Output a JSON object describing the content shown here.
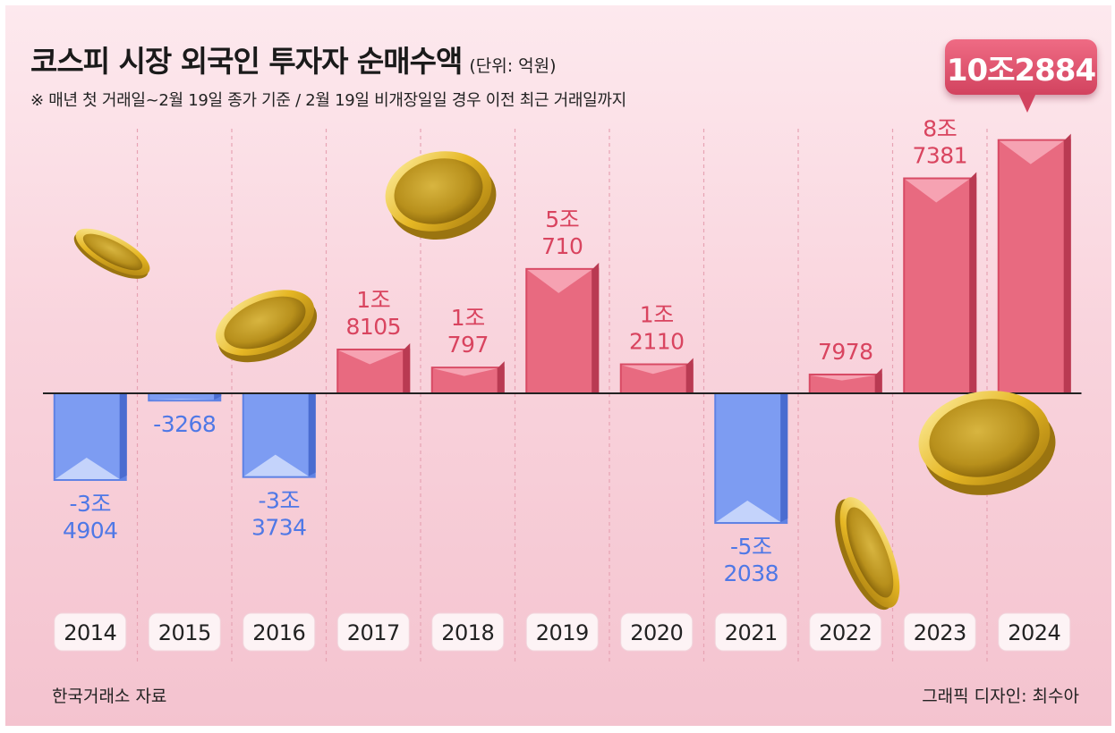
{
  "header": {
    "title": "코스피 시장 외국인 투자자 순매수액",
    "unit": "(단위: 억원)",
    "note": "※ 매년 첫 거래일~2월 19일 종가 기준 / 2월 19일 비개장일일 경우 이전 최근 거래일까지"
  },
  "footer": {
    "source": "한국거래소 자료",
    "credit": "그래픽 디자인: 최수아"
  },
  "highlight": {
    "label": "10조2884"
  },
  "colors": {
    "positive": "#e86a80",
    "negative": "#7d9cf2",
    "positive_text": "#d9445f",
    "negative_text": "#4f78e6"
  },
  "chart_data": {
    "type": "bar",
    "title": "코스피 시장 외국인 투자자 순매수액",
    "ylabel": "억원",
    "categories": [
      "2014",
      "2015",
      "2016",
      "2017",
      "2018",
      "2019",
      "2020",
      "2021",
      "2022",
      "2023",
      "2024"
    ],
    "values": [
      -34904,
      -3268,
      -33734,
      18105,
      10797,
      50710,
      12110,
      -52038,
      7978,
      87381,
      102884
    ],
    "labels": [
      [
        "-3조",
        "4904"
      ],
      [
        "-3268"
      ],
      [
        "-3조",
        "3734"
      ],
      [
        "1조",
        "8105"
      ],
      [
        "1조",
        "797"
      ],
      [
        "5조",
        "710"
      ],
      [
        "1조",
        "2110"
      ],
      [
        "-5조",
        "2038"
      ],
      [
        "7978"
      ],
      [
        "8조",
        "7381"
      ],
      []
    ],
    "ylim": [
      -60000,
      110000
    ]
  }
}
